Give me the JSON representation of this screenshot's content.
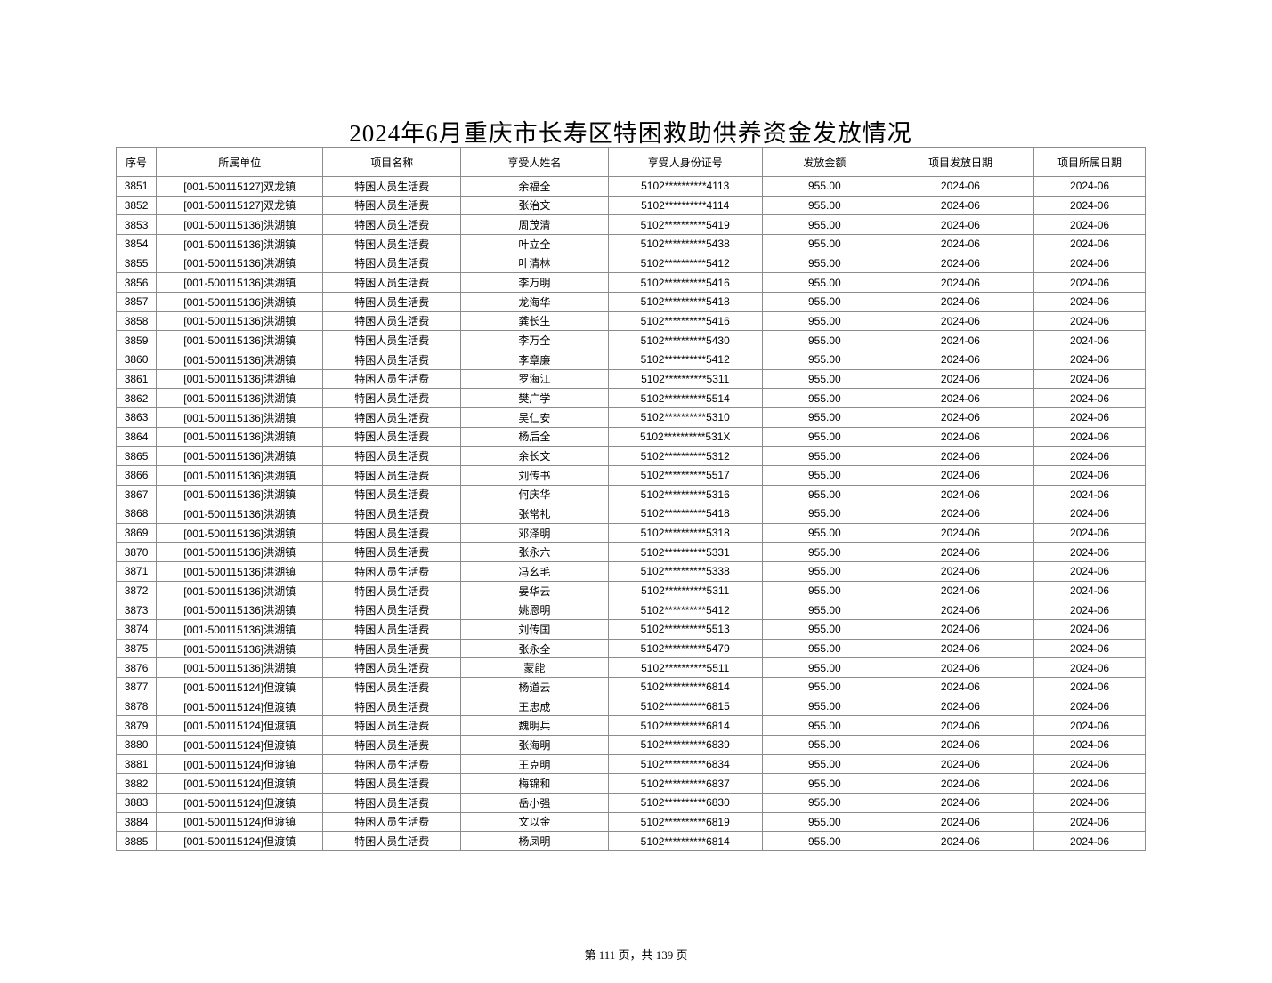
{
  "page": {
    "title": "2024年6月重庆市长寿区特困救助供养资金发放情况",
    "footer": "第 111 页，共 139 页"
  },
  "table": {
    "headers": [
      "序号",
      "所属单位",
      "项目名称",
      "享受人姓名",
      "享受人身份证号",
      "发放金额",
      "项目发放日期",
      "项目所属日期"
    ],
    "rows": [
      [
        "3851",
        "[001-500115127]双龙镇",
        "特困人员生活费",
        "余福全",
        "5102**********4113",
        "955.00",
        "2024-06",
        "2024-06"
      ],
      [
        "3852",
        "[001-500115127]双龙镇",
        "特困人员生活费",
        "张治文",
        "5102**********4114",
        "955.00",
        "2024-06",
        "2024-06"
      ],
      [
        "3853",
        "[001-500115136]洪湖镇",
        "特困人员生活费",
        "周茂清",
        "5102**********5419",
        "955.00",
        "2024-06",
        "2024-06"
      ],
      [
        "3854",
        "[001-500115136]洪湖镇",
        "特困人员生活费",
        "叶立全",
        "5102**********5438",
        "955.00",
        "2024-06",
        "2024-06"
      ],
      [
        "3855",
        "[001-500115136]洪湖镇",
        "特困人员生活费",
        "叶清林",
        "5102**********5412",
        "955.00",
        "2024-06",
        "2024-06"
      ],
      [
        "3856",
        "[001-500115136]洪湖镇",
        "特困人员生活费",
        "李万明",
        "5102**********5416",
        "955.00",
        "2024-06",
        "2024-06"
      ],
      [
        "3857",
        "[001-500115136]洪湖镇",
        "特困人员生活费",
        "龙海华",
        "5102**********5418",
        "955.00",
        "2024-06",
        "2024-06"
      ],
      [
        "3858",
        "[001-500115136]洪湖镇",
        "特困人员生活费",
        "龚长生",
        "5102**********5416",
        "955.00",
        "2024-06",
        "2024-06"
      ],
      [
        "3859",
        "[001-500115136]洪湖镇",
        "特困人员生活费",
        "李万全",
        "5102**********5430",
        "955.00",
        "2024-06",
        "2024-06"
      ],
      [
        "3860",
        "[001-500115136]洪湖镇",
        "特困人员生活费",
        "李章廉",
        "5102**********5412",
        "955.00",
        "2024-06",
        "2024-06"
      ],
      [
        "3861",
        "[001-500115136]洪湖镇",
        "特困人员生活费",
        "罗海江",
        "5102**********5311",
        "955.00",
        "2024-06",
        "2024-06"
      ],
      [
        "3862",
        "[001-500115136]洪湖镇",
        "特困人员生活费",
        "樊广学",
        "5102**********5514",
        "955.00",
        "2024-06",
        "2024-06"
      ],
      [
        "3863",
        "[001-500115136]洪湖镇",
        "特困人员生活费",
        "吴仁安",
        "5102**********5310",
        "955.00",
        "2024-06",
        "2024-06"
      ],
      [
        "3864",
        "[001-500115136]洪湖镇",
        "特困人员生活费",
        "杨后全",
        "5102**********531X",
        "955.00",
        "2024-06",
        "2024-06"
      ],
      [
        "3865",
        "[001-500115136]洪湖镇",
        "特困人员生活费",
        "余长文",
        "5102**********5312",
        "955.00",
        "2024-06",
        "2024-06"
      ],
      [
        "3866",
        "[001-500115136]洪湖镇",
        "特困人员生活费",
        "刘传书",
        "5102**********5517",
        "955.00",
        "2024-06",
        "2024-06"
      ],
      [
        "3867",
        "[001-500115136]洪湖镇",
        "特困人员生活费",
        "何庆华",
        "5102**********5316",
        "955.00",
        "2024-06",
        "2024-06"
      ],
      [
        "3868",
        "[001-500115136]洪湖镇",
        "特困人员生活费",
        "张常礼",
        "5102**********5418",
        "955.00",
        "2024-06",
        "2024-06"
      ],
      [
        "3869",
        "[001-500115136]洪湖镇",
        "特困人员生活费",
        "邓泽明",
        "5102**********5318",
        "955.00",
        "2024-06",
        "2024-06"
      ],
      [
        "3870",
        "[001-500115136]洪湖镇",
        "特困人员生活费",
        "张永六",
        "5102**********5331",
        "955.00",
        "2024-06",
        "2024-06"
      ],
      [
        "3871",
        "[001-500115136]洪湖镇",
        "特困人员生活费",
        "冯幺毛",
        "5102**********5338",
        "955.00",
        "2024-06",
        "2024-06"
      ],
      [
        "3872",
        "[001-500115136]洪湖镇",
        "特困人员生活费",
        "晏华云",
        "5102**********5311",
        "955.00",
        "2024-06",
        "2024-06"
      ],
      [
        "3873",
        "[001-500115136]洪湖镇",
        "特困人员生活费",
        "姚恩明",
        "5102**********5412",
        "955.00",
        "2024-06",
        "2024-06"
      ],
      [
        "3874",
        "[001-500115136]洪湖镇",
        "特困人员生活费",
        "刘传国",
        "5102**********5513",
        "955.00",
        "2024-06",
        "2024-06"
      ],
      [
        "3875",
        "[001-500115136]洪湖镇",
        "特困人员生活费",
        "张永全",
        "5102**********5479",
        "955.00",
        "2024-06",
        "2024-06"
      ],
      [
        "3876",
        "[001-500115136]洪湖镇",
        "特困人员生活费",
        "蒙能",
        "5102**********5511",
        "955.00",
        "2024-06",
        "2024-06"
      ],
      [
        "3877",
        "[001-500115124]但渡镇",
        "特困人员生活费",
        "杨道云",
        "5102**********6814",
        "955.00",
        "2024-06",
        "2024-06"
      ],
      [
        "3878",
        "[001-500115124]但渡镇",
        "特困人员生活费",
        "王忠成",
        "5102**********6815",
        "955.00",
        "2024-06",
        "2024-06"
      ],
      [
        "3879",
        "[001-500115124]但渡镇",
        "特困人员生活费",
        "魏明兵",
        "5102**********6814",
        "955.00",
        "2024-06",
        "2024-06"
      ],
      [
        "3880",
        "[001-500115124]但渡镇",
        "特困人员生活费",
        "张海明",
        "5102**********6839",
        "955.00",
        "2024-06",
        "2024-06"
      ],
      [
        "3881",
        "[001-500115124]但渡镇",
        "特困人员生活费",
        "王克明",
        "5102**********6834",
        "955.00",
        "2024-06",
        "2024-06"
      ],
      [
        "3882",
        "[001-500115124]但渡镇",
        "特困人员生活费",
        "梅锦和",
        "5102**********6837",
        "955.00",
        "2024-06",
        "2024-06"
      ],
      [
        "3883",
        "[001-500115124]但渡镇",
        "特困人员生活费",
        "岳小强",
        "5102**********6830",
        "955.00",
        "2024-06",
        "2024-06"
      ],
      [
        "3884",
        "[001-500115124]但渡镇",
        "特困人员生活费",
        "文以金",
        "5102**********6819",
        "955.00",
        "2024-06",
        "2024-06"
      ],
      [
        "3885",
        "[001-500115124]但渡镇",
        "特困人员生活费",
        "杨凤明",
        "5102**********6814",
        "955.00",
        "2024-06",
        "2024-06"
      ]
    ]
  }
}
